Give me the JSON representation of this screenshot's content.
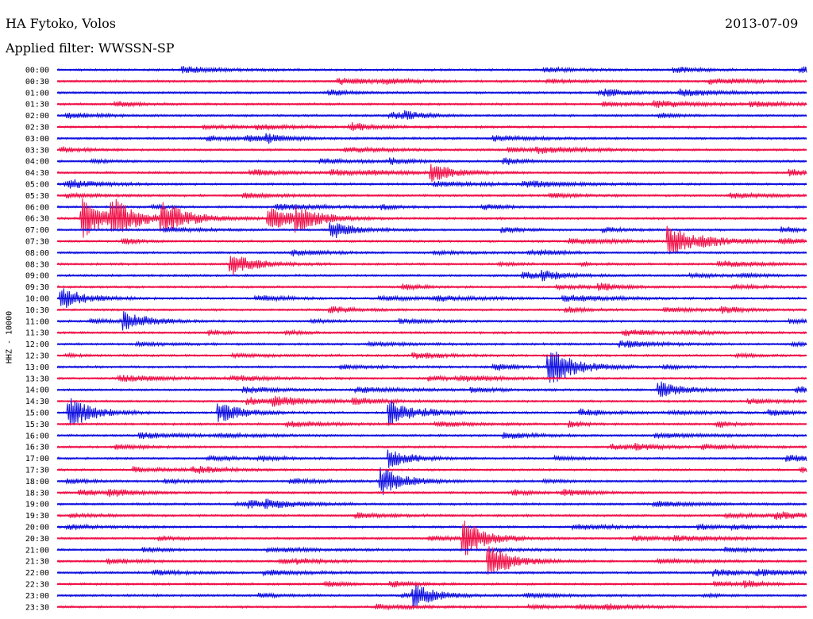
{
  "header": {
    "station": "HA Fytoko, Volos",
    "date": "2013-07-09",
    "filter": "Applied filter: WWSSN-SP"
  },
  "channel": "HHZ - 10000",
  "colors": {
    "odd_rows": "#1010e0",
    "even_rows": "#f01048"
  },
  "chart_data": {
    "type": "line",
    "title": "HA Fytoko, Volos",
    "subtitle": "Applied filter: WWSSN-SP",
    "ylabel": "HHZ - 10000",
    "xlabel": "",
    "series_note": "helicorder: one trace per 30-minute row, 48 rows per day",
    "rows": [
      "00:00",
      "00:30",
      "01:00",
      "01:30",
      "02:00",
      "02:30",
      "03:00",
      "03:30",
      "04:00",
      "04:30",
      "05:00",
      "05:30",
      "06:00",
      "06:30",
      "07:00",
      "07:30",
      "08:00",
      "08:30",
      "09:00",
      "09:30",
      "10:00",
      "10:30",
      "11:00",
      "11:30",
      "12:00",
      "12:30",
      "13:00",
      "13:30",
      "14:00",
      "14:30",
      "15:00",
      "15:30",
      "16:00",
      "16:30",
      "17:00",
      "17:30",
      "18:00",
      "18:30",
      "19:00",
      "19:30",
      "20:00",
      "20:30",
      "21:00",
      "21:30",
      "22:00",
      "22:30",
      "23:00",
      "23:30"
    ],
    "events": [
      {
        "row": "04:30",
        "minute": 15.0,
        "amplitude": 0.5
      },
      {
        "row": "06:30",
        "minute": 1.0,
        "amplitude": 0.9
      },
      {
        "row": "06:30",
        "minute": 2.2,
        "amplitude": 1.0
      },
      {
        "row": "06:30",
        "minute": 4.2,
        "amplitude": 0.8
      },
      {
        "row": "06:30",
        "minute": 8.5,
        "amplitude": 0.6
      },
      {
        "row": "06:30",
        "minute": 9.6,
        "amplitude": 0.6
      },
      {
        "row": "07:00",
        "minute": 11.0,
        "amplitude": 0.5
      },
      {
        "row": "07:30",
        "minute": 24.5,
        "amplitude": 0.9
      },
      {
        "row": "08:30",
        "minute": 7.0,
        "amplitude": 0.5
      },
      {
        "row": "10:00",
        "minute": 0.2,
        "amplitude": 0.6
      },
      {
        "row": "11:00",
        "minute": 2.7,
        "amplitude": 0.6
      },
      {
        "row": "13:00",
        "minute": 19.7,
        "amplitude": 1.0
      },
      {
        "row": "14:00",
        "minute": 24.1,
        "amplitude": 0.5
      },
      {
        "row": "15:00",
        "minute": 0.5,
        "amplitude": 0.9
      },
      {
        "row": "15:00",
        "minute": 6.5,
        "amplitude": 0.6
      },
      {
        "row": "15:00",
        "minute": 13.3,
        "amplitude": 0.7
      },
      {
        "row": "17:00",
        "minute": 13.3,
        "amplitude": 0.5
      },
      {
        "row": "18:00",
        "minute": 13.0,
        "amplitude": 0.8
      },
      {
        "row": "20:30",
        "minute": 16.3,
        "amplitude": 1.0
      },
      {
        "row": "21:30",
        "minute": 17.3,
        "amplitude": 1.0
      },
      {
        "row": "23:00",
        "minute": 14.3,
        "amplitude": 0.6
      }
    ]
  }
}
